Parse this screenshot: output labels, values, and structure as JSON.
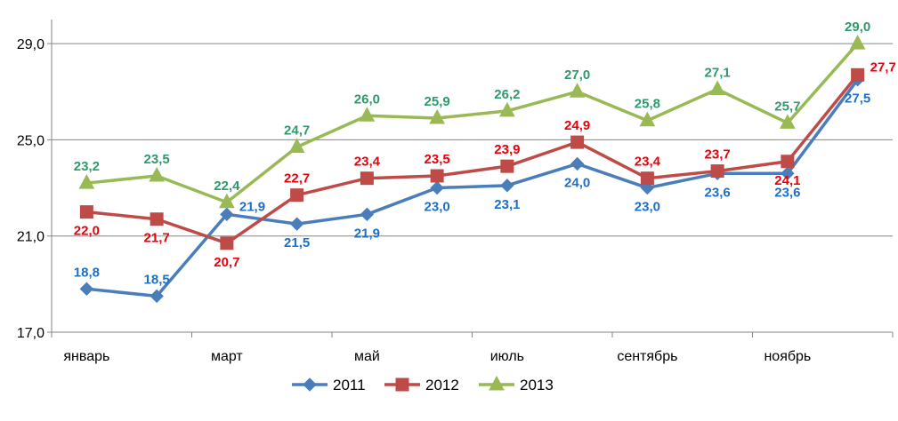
{
  "chart_data": {
    "type": "line",
    "categories": [
      "январь",
      "",
      "март",
      "",
      "май",
      "",
      "июль",
      "",
      "сентябрь",
      "",
      "ноябрь",
      ""
    ],
    "ylim": [
      17.0,
      30.0
    ],
    "yticks": [
      "17,0",
      "21,0",
      "25,0",
      "29,0"
    ],
    "ytick_values": [
      17,
      21,
      25,
      29
    ],
    "grid": true,
    "legend_position": "bottom",
    "series": [
      {
        "name": "2011",
        "color": "#4a7ebb",
        "label_color": "#1f6fc4",
        "marker": "diamond",
        "values": [
          18.8,
          18.5,
          21.9,
          21.5,
          21.9,
          23.0,
          23.1,
          24.0,
          23.0,
          23.6,
          23.6,
          27.5
        ],
        "labels": [
          "18,8",
          "18,5",
          "21,9",
          "21,5",
          "21,9",
          "23,0",
          "23,1",
          "24,0",
          "23,0",
          "23,6",
          "23,6",
          "27,5"
        ],
        "label_pos": [
          "above",
          "above",
          "right",
          "below",
          "below",
          "below",
          "below",
          "below",
          "below",
          "below",
          "below",
          "below"
        ]
      },
      {
        "name": "2012",
        "color": "#be4b48",
        "label_color": "#e8000b",
        "marker": "square",
        "values": [
          22.0,
          21.7,
          20.7,
          22.7,
          23.4,
          23.5,
          23.9,
          24.9,
          23.4,
          23.7,
          24.1,
          27.7
        ],
        "labels": [
          "22,0",
          "21,7",
          "20,7",
          "22,7",
          "23,4",
          "23,5",
          "23,9",
          "24,9",
          "23,4",
          "23,7",
          "24,1",
          "27,7"
        ],
        "label_pos": [
          "below",
          "below",
          "below",
          "above",
          "above",
          "above",
          "above",
          "above",
          "above",
          "above",
          "below",
          "right"
        ]
      },
      {
        "name": "2013",
        "color": "#98b954",
        "label_color": "#2e9a6b",
        "marker": "triangle",
        "values": [
          23.2,
          23.5,
          22.4,
          24.7,
          26.0,
          25.9,
          26.2,
          27.0,
          25.8,
          27.1,
          25.7,
          29.0
        ],
        "labels": [
          "23,2",
          "23,5",
          "22,4",
          "24,7",
          "26,0",
          "25,9",
          "26,2",
          "27,0",
          "25,8",
          "27,1",
          "25,7",
          "29,0"
        ],
        "label_pos": [
          "above",
          "above",
          "above",
          "above",
          "above",
          "above",
          "above",
          "above",
          "above",
          "above",
          "above",
          "above"
        ]
      }
    ]
  }
}
